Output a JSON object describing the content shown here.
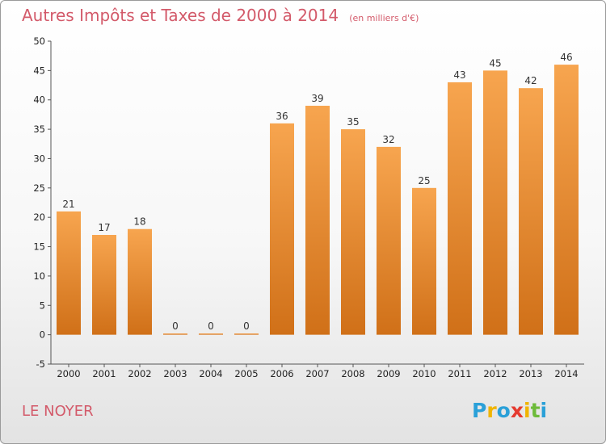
{
  "chart_data": {
    "type": "bar",
    "title": "Autres Impôts et Taxes de 2000 à 2014",
    "subtitle": "(en milliers d'€)",
    "categories": [
      "2000",
      "2001",
      "2002",
      "2003",
      "2004",
      "2005",
      "2006",
      "2007",
      "2008",
      "2009",
      "2010",
      "2011",
      "2012",
      "2013",
      "2014"
    ],
    "values": [
      21,
      17,
      18,
      0,
      0,
      0,
      36,
      39,
      35,
      32,
      25,
      43,
      45,
      42,
      46
    ],
    "ylim": [
      -5,
      50
    ],
    "yticks": [
      -5,
      0,
      5,
      10,
      15,
      20,
      25,
      30,
      35,
      40,
      45,
      50
    ],
    "xlabel": "",
    "ylabel": "",
    "grid": false,
    "bar_color_top": "#f7a54f",
    "bar_color_bottom": "#d07018"
  },
  "footer": {
    "commune": "LE NOYER",
    "logo_letters": [
      "P",
      "r",
      "o",
      "x",
      "i",
      "t",
      "i"
    ],
    "logo_colors": [
      "#2aa0d8",
      "#f0b400",
      "#2aa0d8",
      "#e53a2f",
      "#f0b400",
      "#6dbb3a",
      "#2aa0d8"
    ]
  }
}
